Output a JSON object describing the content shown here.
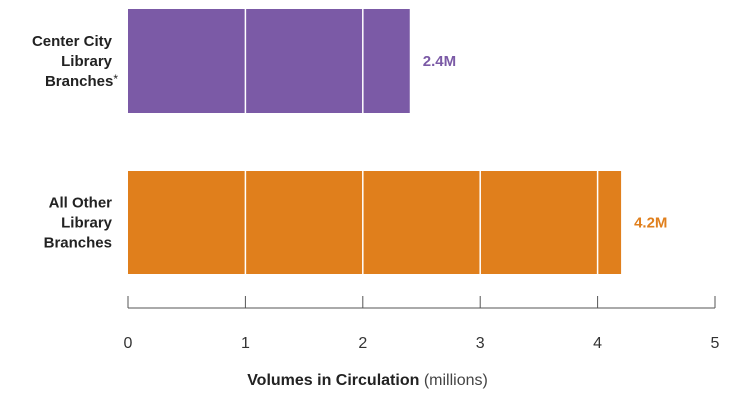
{
  "chart_data": {
    "type": "bar",
    "orientation": "horizontal",
    "categories": [
      {
        "lines": [
          "Center City",
          "Library",
          "Branches"
        ],
        "footnote_mark": "*"
      },
      {
        "lines": [
          "All Other",
          "Library",
          "Branches"
        ],
        "footnote_mark": ""
      }
    ],
    "values": [
      2.4,
      4.2
    ],
    "value_labels": [
      "2.4M",
      "4.2M"
    ],
    "colors": [
      "#7b5aa6",
      "#e07f1c"
    ],
    "xlim": [
      0,
      5
    ],
    "xticks": [
      "0",
      "1",
      "2",
      "3",
      "4",
      "5"
    ],
    "xlabel": "Volumes in Circulation",
    "xlabel_unit": "(millions)",
    "grid": true
  }
}
